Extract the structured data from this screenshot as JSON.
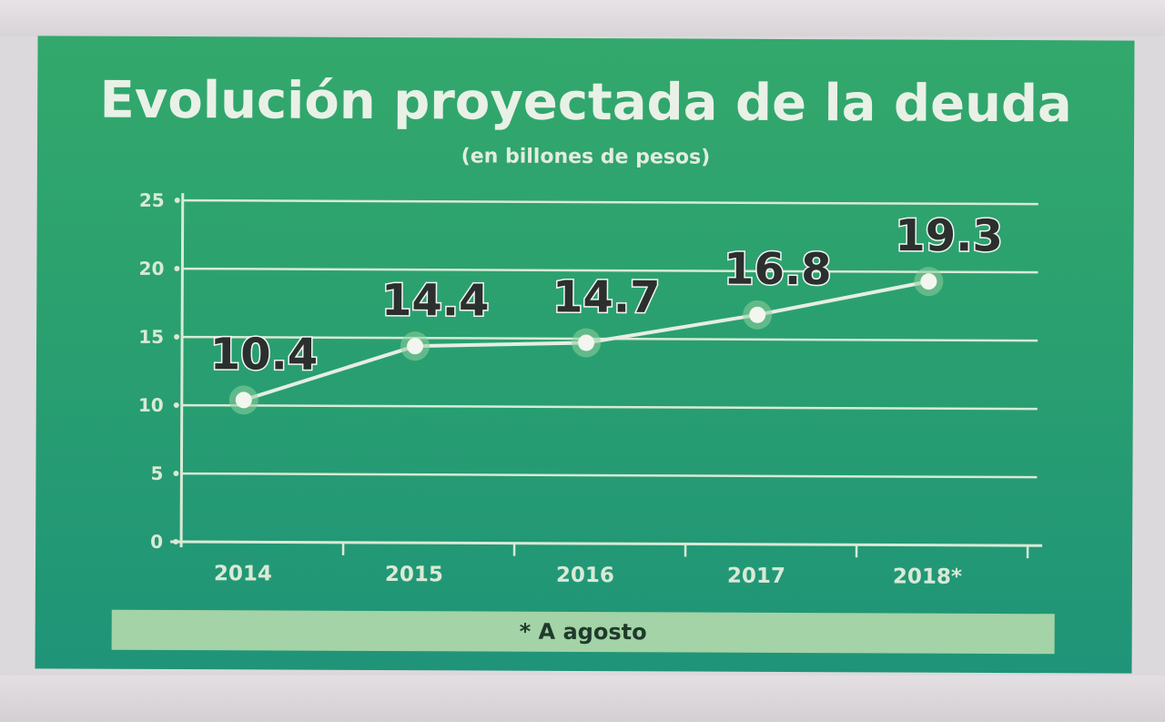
{
  "chart_data": {
    "type": "line",
    "title": "Evolución proyectada de la deuda",
    "subtitle": "(en billones de pesos)",
    "categories": [
      "2014",
      "2015",
      "2016",
      "2017",
      "2018*"
    ],
    "values": [
      10.4,
      14.4,
      14.7,
      16.8,
      19.3
    ],
    "data_labels": [
      "10.4",
      "14.4",
      "14.7",
      "16.8",
      "19.3"
    ],
    "y_ticks": [
      "25",
      "20",
      "15",
      "10",
      "5",
      "0"
    ],
    "ylim": [
      0,
      25
    ],
    "grid": true,
    "footnote": "* A agosto"
  },
  "colors": {
    "panel": "#2aa070",
    "grid": "#d9ead6",
    "line": "#e6eee3",
    "label_text": "#2b2f2d",
    "label_outline": "#f4f6f2",
    "footnote_bar": "#a3d3a6"
  }
}
